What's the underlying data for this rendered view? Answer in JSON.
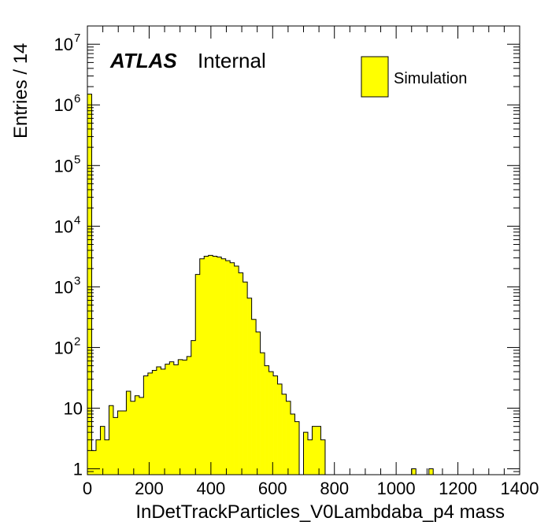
{
  "chart_data": {
    "type": "bar",
    "title": "",
    "xlabel": "InDetTrackParticles_V0Lambdaba_p4 mass",
    "ylabel": "Entries / 14",
    "experiment_label": "ATLAS",
    "experiment_tag": "Internal",
    "xlim": [
      0,
      1400
    ],
    "ylim": [
      0.8,
      20000000
    ],
    "y_scale": "log",
    "bin_width": 14,
    "x_ticks": [
      0,
      200,
      400,
      600,
      800,
      1000,
      1200,
      1400
    ],
    "x_tick_labels": [
      "0",
      "200",
      "400",
      "600",
      "800",
      "1000",
      "1200",
      "1400"
    ],
    "y_tick_labels": [
      {
        "value": 1,
        "mantissa": "1",
        "exponent": ""
      },
      {
        "value": 10,
        "mantissa": "10",
        "exponent": ""
      },
      {
        "value": 100,
        "mantissa": "10",
        "exponent": "2"
      },
      {
        "value": 1000,
        "mantissa": "10",
        "exponent": "3"
      },
      {
        "value": 10000,
        "mantissa": "10",
        "exponent": "4"
      },
      {
        "value": 100000,
        "mantissa": "10",
        "exponent": "5"
      },
      {
        "value": 1000000,
        "mantissa": "10",
        "exponent": "6"
      },
      {
        "value": 10000000,
        "mantissa": "10",
        "exponent": "7"
      }
    ],
    "legend_position": "top-right",
    "series": [
      {
        "name": "Simulation",
        "color": "#ffff00",
        "edge_color": "#000000",
        "values": [
          1500000,
          2,
          3,
          5,
          3,
          11,
          7,
          9,
          9,
          19,
          13,
          16,
          15,
          34,
          38,
          42,
          48,
          44,
          53,
          58,
          52,
          63,
          62,
          71,
          130,
          1600,
          2900,
          3200,
          3300,
          3200,
          3100,
          2900,
          2700,
          2500,
          2200,
          1700,
          1200,
          650,
          290,
          180,
          82,
          50,
          40,
          34,
          25,
          17,
          13,
          8,
          6,
          0,
          4,
          3,
          5,
          5,
          3,
          0,
          0,
          0,
          0,
          0,
          0,
          0,
          0,
          0,
          0,
          0,
          0,
          0,
          0,
          0,
          0,
          0,
          0,
          0,
          0,
          1,
          0,
          0,
          0,
          1,
          0,
          0,
          0,
          0,
          0,
          0,
          0,
          0,
          0,
          0,
          0,
          0,
          0,
          0,
          0,
          0,
          0,
          0,
          0,
          0
        ]
      }
    ]
  }
}
